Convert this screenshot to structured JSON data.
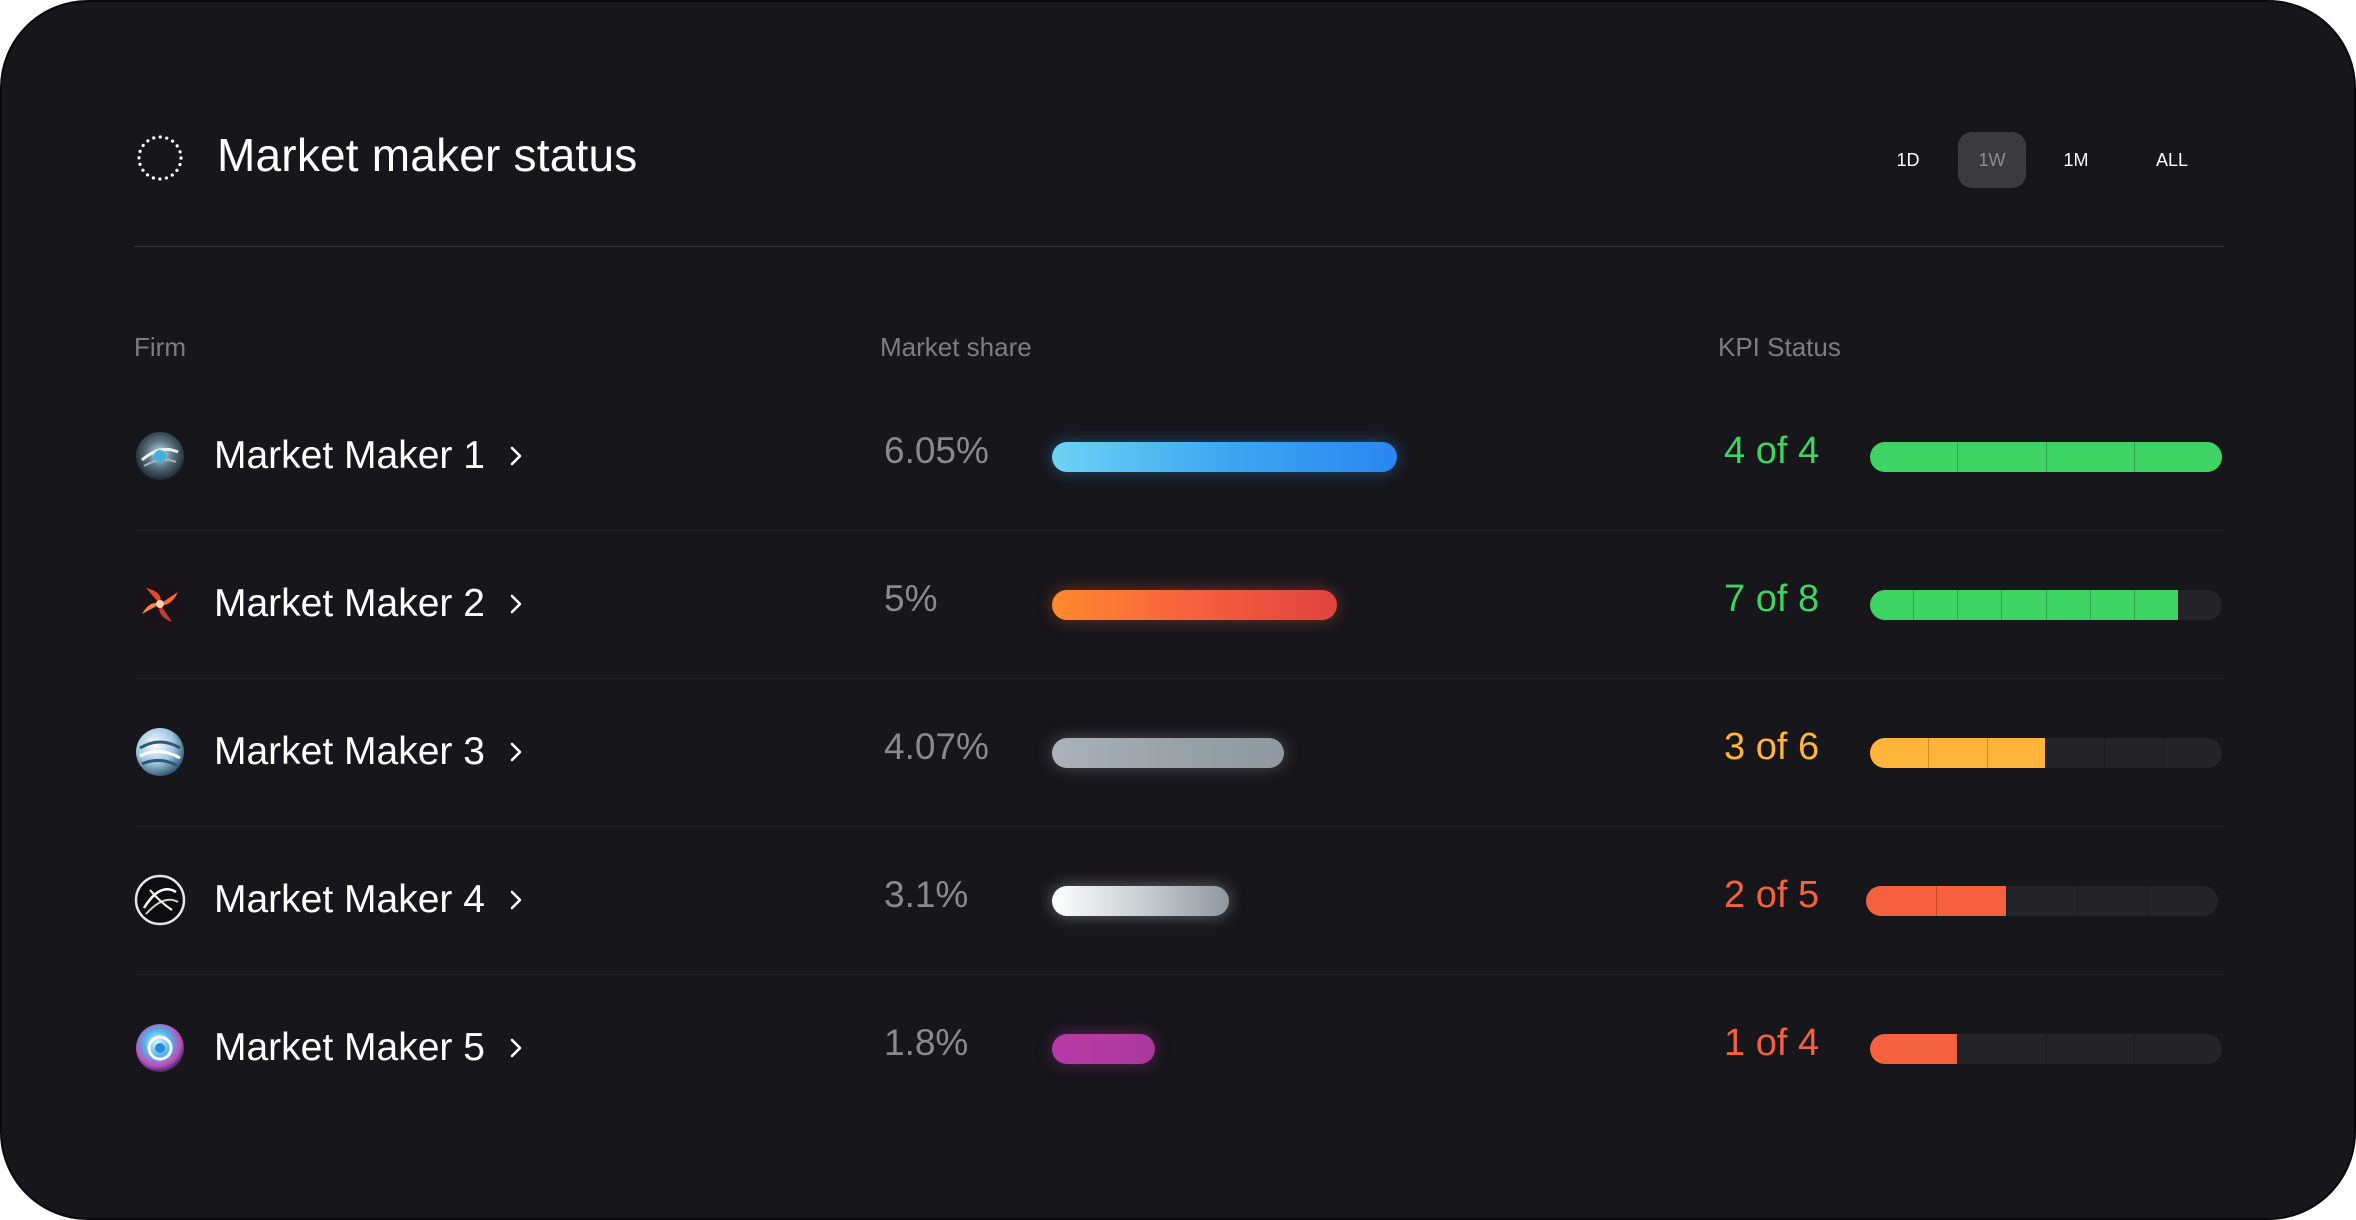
{
  "header": {
    "title": "Market maker status",
    "icon": "dotted-circle-icon",
    "ranges": [
      {
        "label": "1D",
        "active": false
      },
      {
        "label": "1W",
        "active": true
      },
      {
        "label": "1M",
        "active": false
      },
      {
        "label": "ALL",
        "active": false
      }
    ]
  },
  "columns": {
    "firm": "Firm",
    "market_share": "Market share",
    "kpi_status": "KPI Status"
  },
  "colors": {
    "green": "#3dd463",
    "amber": "#ffb43a",
    "red": "#f5613f"
  },
  "rows": [
    {
      "name": "Market Maker 1",
      "avatar": "avatar-1-icon",
      "share_label": "6.05%",
      "share_pct": 6.05,
      "share_gradient": [
        "#6fd3f5",
        "#3ea7f0",
        "#2a86f0"
      ],
      "share_glow": "#3aa0f0",
      "kpi_label": "4 of 4",
      "kpi_done": 4,
      "kpi_total": 4,
      "kpi_color": "#3dd463"
    },
    {
      "name": "Market Maker 2",
      "avatar": "avatar-2-icon",
      "share_label": "5%",
      "share_pct": 5,
      "share_gradient": [
        "#ff8a2e",
        "#f6603e",
        "#e0433f"
      ],
      "share_glow": "#f0603a",
      "kpi_label": "7 of 8",
      "kpi_done": 7,
      "kpi_total": 8,
      "kpi_color": "#3dd463"
    },
    {
      "name": "Market Maker 3",
      "avatar": "avatar-3-icon",
      "share_label": "4.07%",
      "share_pct": 4.07,
      "share_gradient": [
        "#aab3b9",
        "#9aa3a8",
        "#8e989e"
      ],
      "share_glow": "#8e989e",
      "kpi_label": "3 of 6",
      "kpi_done": 3,
      "kpi_total": 6,
      "kpi_color": "#ffb43a"
    },
    {
      "name": "Market Maker 4",
      "avatar": "avatar-4-icon",
      "share_label": "3.1%",
      "share_pct": 3.1,
      "share_gradient": [
        "#ffffff",
        "#c9cfd2",
        "#8e989e"
      ],
      "share_glow": "#d8dde0",
      "kpi_label": "2 of 5",
      "kpi_done": 2,
      "kpi_total": 5,
      "kpi_color": "#f5613f"
    },
    {
      "name": "Market Maker 5",
      "avatar": "avatar-5-icon",
      "share_label": "1.8%",
      "share_pct": 1.8,
      "share_gradient": [
        "#b83aa8",
        "#b23aa2",
        "#a8389c"
      ],
      "share_glow": "#b23aa2",
      "kpi_label": "1 of 4",
      "kpi_done": 1,
      "kpi_total": 4,
      "kpi_color": "#f5613f"
    }
  ]
}
